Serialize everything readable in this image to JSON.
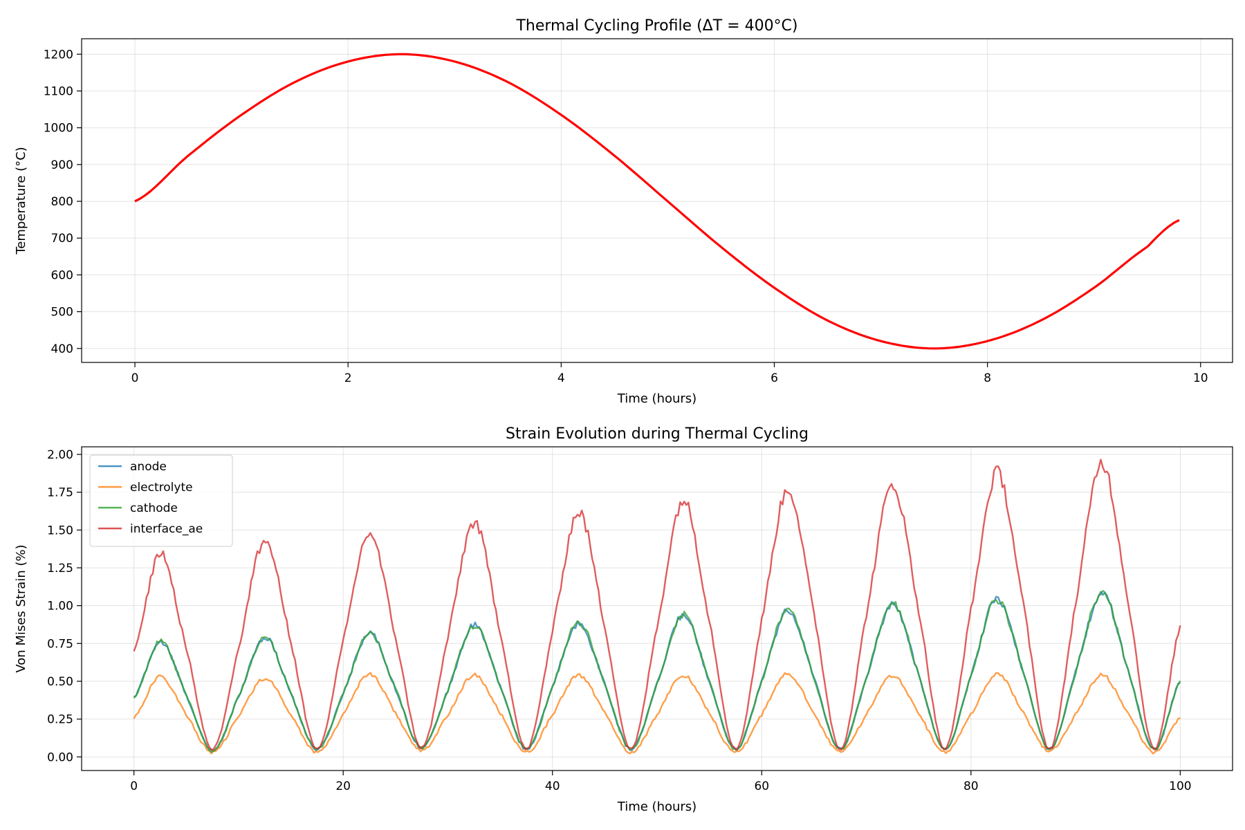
{
  "chart_data": [
    {
      "type": "line",
      "title": "Thermal Cycling Profile (ΔT = 400°C)",
      "xlabel": "Time (hours)",
      "ylabel": "Temperature (°C)",
      "xlim": [
        -0.5,
        10.3
      ],
      "ylim": [
        362,
        1242
      ],
      "xticks": [
        0,
        2,
        4,
        6,
        8,
        10
      ],
      "yticks": [
        400,
        500,
        600,
        700,
        800,
        900,
        1000,
        1100,
        1200
      ],
      "grid": true,
      "x": [
        0,
        0.5,
        1,
        1.5,
        2,
        2.5,
        3,
        3.5,
        4,
        4.5,
        5,
        5.5,
        6,
        6.5,
        7,
        7.5,
        8,
        8.5,
        9,
        9.5,
        9.8
      ],
      "series": [
        {
          "color": "#ff0000",
          "values": [
            800,
            924,
            1035,
            1124,
            1180,
            1200,
            1180,
            1124,
            1035,
            924,
            800,
            676,
            565,
            476,
            420,
            400,
            420,
            476,
            565,
            676,
            749
          ]
        }
      ]
    },
    {
      "type": "line",
      "title": "Strain Evolution during Thermal Cycling",
      "xlabel": "Time (hours)",
      "ylabel": "Von Mises Strain (%)",
      "xlim": [
        -5,
        105
      ],
      "ylim": [
        -0.09,
        2.05
      ],
      "xticks": [
        0,
        20,
        40,
        60,
        80,
        100
      ],
      "yticks": [
        "0.00",
        "0.25",
        "0.50",
        "0.75",
        "1.00",
        "1.25",
        "1.50",
        "1.75",
        "2.00"
      ],
      "grid": true,
      "legend": "top-left",
      "x": [
        0,
        2.5,
        5,
        7.5,
        10,
        12.5,
        15,
        17.5,
        20,
        22.5,
        25,
        27.5,
        30,
        32.5,
        35,
        37.5,
        40,
        42.5,
        45,
        47.5,
        50,
        52.5,
        55,
        57.5,
        60,
        62.5,
        65,
        67.5,
        70,
        72.5,
        75,
        77.5,
        80,
        82.5,
        85,
        87.5,
        90,
        92.5,
        95,
        97.5,
        100
      ],
      "series": [
        {
          "name": "anode",
          "color": "#1f77b4",
          "values": [
            0.39,
            0.76,
            0.41,
            0.04,
            0.4,
            0.79,
            0.42,
            0.05,
            0.42,
            0.82,
            0.45,
            0.06,
            0.44,
            0.87,
            0.47,
            0.05,
            0.46,
            0.88,
            0.48,
            0.05,
            0.48,
            0.94,
            0.5,
            0.05,
            0.5,
            0.97,
            0.52,
            0.05,
            0.52,
            1.01,
            0.54,
            0.05,
            0.54,
            1.05,
            0.56,
            0.05,
            0.56,
            1.08,
            0.58,
            0.05,
            0.5
          ]
        },
        {
          "name": "electrolyte",
          "color": "#ff7f0e",
          "values": [
            0.26,
            0.53,
            0.28,
            0.03,
            0.27,
            0.52,
            0.28,
            0.03,
            0.28,
            0.55,
            0.29,
            0.04,
            0.28,
            0.54,
            0.29,
            0.03,
            0.28,
            0.54,
            0.29,
            0.03,
            0.28,
            0.54,
            0.29,
            0.03,
            0.28,
            0.55,
            0.29,
            0.03,
            0.28,
            0.54,
            0.29,
            0.03,
            0.28,
            0.55,
            0.29,
            0.04,
            0.28,
            0.54,
            0.29,
            0.03,
            0.26
          ]
        },
        {
          "name": "cathode",
          "color": "#2ca02c",
          "values": [
            0.39,
            0.76,
            0.41,
            0.04,
            0.4,
            0.79,
            0.42,
            0.05,
            0.42,
            0.81,
            0.45,
            0.06,
            0.44,
            0.87,
            0.47,
            0.05,
            0.46,
            0.89,
            0.48,
            0.05,
            0.48,
            0.94,
            0.5,
            0.05,
            0.5,
            0.98,
            0.52,
            0.05,
            0.52,
            1.02,
            0.54,
            0.05,
            0.54,
            1.04,
            0.56,
            0.05,
            0.56,
            1.09,
            0.58,
            0.05,
            0.5
          ]
        },
        {
          "name": "interface_ae",
          "color": "#d62728",
          "values": [
            0.69,
            1.35,
            0.72,
            0.05,
            0.72,
            1.43,
            0.76,
            0.05,
            0.76,
            1.48,
            0.79,
            0.06,
            0.79,
            1.55,
            0.83,
            0.05,
            0.83,
            1.62,
            0.86,
            0.05,
            0.86,
            1.7,
            0.9,
            0.05,
            0.9,
            1.77,
            0.94,
            0.05,
            0.94,
            1.8,
            0.97,
            0.05,
            0.97,
            1.88,
            1.01,
            0.05,
            1.01,
            1.95,
            1.04,
            0.05,
            0.86
          ]
        }
      ]
    }
  ]
}
